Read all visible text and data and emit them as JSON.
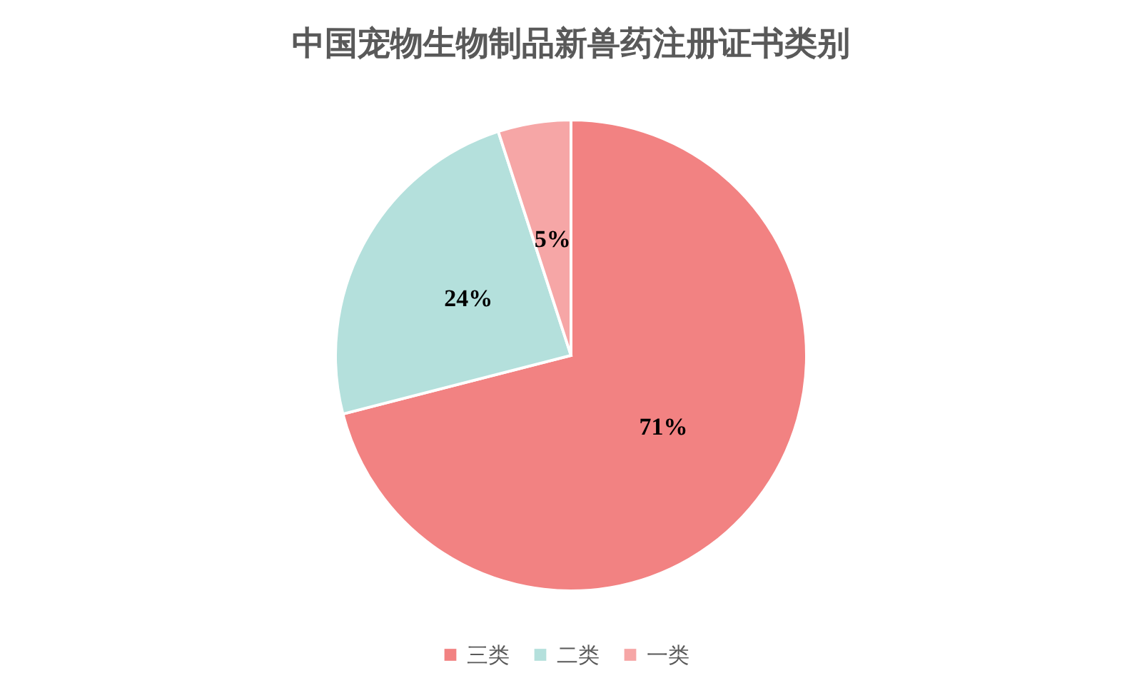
{
  "chart_data": {
    "type": "pie",
    "title": "中国宠物生物制品新兽药注册证书类别",
    "categories": [
      "三类",
      "二类",
      "一类"
    ],
    "values": [
      71,
      24,
      5
    ],
    "colors": [
      "#f28282",
      "#b4e0dc",
      "#f6a6a6"
    ],
    "value_labels": [
      "71%",
      "24%",
      "5%"
    ],
    "legend": "bottom"
  }
}
